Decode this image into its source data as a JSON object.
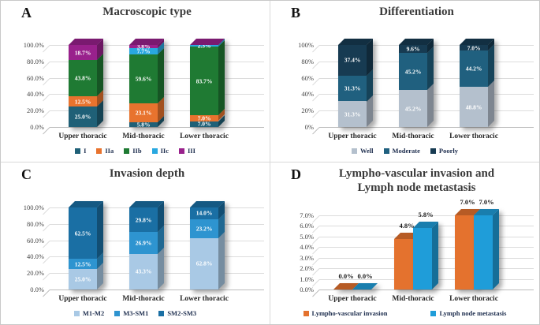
{
  "figure": {
    "background": "#ffffff",
    "border_color": "#c9c9c9",
    "divider_color": "#d8d8d8",
    "gridline_color": "#dcdcdc",
    "baseline_color": "#bdbdbd"
  },
  "chart_data": [
    {
      "panel_label": "A",
      "type": "stacked-bar",
      "title_lines": [
        "Macroscopic type"
      ],
      "categories": [
        "Upper thoracic",
        "Mid-thoracic",
        "Lower thoracic"
      ],
      "y_ticks": [
        "100.0%",
        "80.0%",
        "60.0%",
        "40.0%",
        "20.0%",
        "0.0%"
      ],
      "ymax": 100,
      "value_label_color": "#ffffff",
      "legend_position": "bottom",
      "series": [
        {
          "name": "I",
          "color": "#1F6077",
          "values": [
            25.0,
            5.8,
            7.0
          ]
        },
        {
          "name": "IIa",
          "color": "#E8732E",
          "values": [
            12.5,
            23.1,
            7.0
          ]
        },
        {
          "name": "IIb",
          "color": "#1F7A33",
          "values": [
            43.8,
            59.6,
            83.7
          ]
        },
        {
          "name": "IIc",
          "color": "#29A8E0",
          "values": [
            0,
            7.7,
            2.3
          ]
        },
        {
          "name": "III",
          "color": "#99218C",
          "values": [
            18.7,
            3.8,
            0
          ]
        }
      ]
    },
    {
      "panel_label": "B",
      "type": "stacked-bar",
      "title_lines": [
        "Differentiation"
      ],
      "categories": [
        "Upper thoracic",
        "Mid-thoracic",
        "Lower thoracic"
      ],
      "y_ticks": [
        "100%",
        "80%",
        "60%",
        "40%",
        "20%",
        "0%"
      ],
      "ymax": 100,
      "value_label_color": "#ffffff",
      "legend_position": "bottom",
      "series": [
        {
          "name": "Well",
          "color": "#B4C0CD",
          "values": [
            31.3,
            45.2,
            48.8
          ]
        },
        {
          "name": "Moderate",
          "color": "#20607F",
          "values": [
            31.3,
            45.2,
            44.2
          ]
        },
        {
          "name": "Poorly",
          "color": "#173B52",
          "values": [
            37.4,
            9.6,
            7.0
          ]
        }
      ]
    },
    {
      "panel_label": "C",
      "type": "stacked-bar",
      "title_lines": [
        "Invasion depth"
      ],
      "categories": [
        "Upper thoracic",
        "Mid-thoracic",
        "Lower thoracic"
      ],
      "y_ticks": [
        "100.0%",
        "80.0%",
        "60.0%",
        "40.0%",
        "20.0%",
        "0.0%"
      ],
      "ymax": 100,
      "value_label_color": "#ffffff",
      "legend_position": "bottom",
      "series": [
        {
          "name": "M1-M2",
          "color": "#A9C9E5",
          "values": [
            25.0,
            43.3,
            62.8
          ]
        },
        {
          "name": "M3-SM1",
          "color": "#2E94D0",
          "values": [
            12.5,
            26.9,
            23.2
          ]
        },
        {
          "name": "SM2-SM3",
          "color": "#1A6FA4",
          "values": [
            62.5,
            29.8,
            14.0
          ]
        }
      ]
    },
    {
      "panel_label": "D",
      "type": "grouped-bar",
      "title_lines": [
        "Lympho-vascular invasion and",
        "Lymph node metastasis"
      ],
      "categories": [
        "Upper thoracic",
        "Mid-thoracic",
        "Lower thoracic"
      ],
      "y_ticks": [
        "7.0%",
        "6.0%",
        "5.0%",
        "4.0%",
        "3.0%",
        "2.0%",
        "1.0%",
        "0.0%"
      ],
      "ymax": 7,
      "value_label_color": "#1a1a1a",
      "legend_position": "bottom",
      "series": [
        {
          "name": "Lympho-vascular invasion",
          "color": "#E4722E",
          "values": [
            0,
            4.8,
            7.0
          ]
        },
        {
          "name": "Lymph node metastasis",
          "color": "#1F9DD9",
          "values": [
            0,
            5.8,
            7.0
          ]
        }
      ]
    }
  ]
}
